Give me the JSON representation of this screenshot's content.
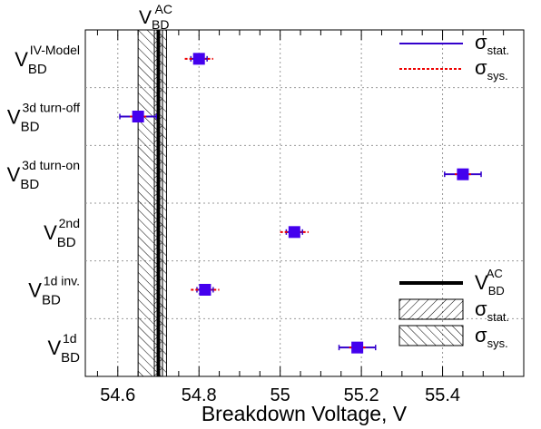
{
  "chart_data": {
    "type": "scatter",
    "xlabel": "Breakdown Voltage, V",
    "xlim": [
      54.52,
      55.6
    ],
    "xticks": [
      {
        "value": 54.6,
        "label": "54.6"
      },
      {
        "value": 54.8,
        "label": "54.8"
      },
      {
        "value": 55.0,
        "label": "55"
      },
      {
        "value": 55.2,
        "label": "55.2"
      },
      {
        "value": 55.4,
        "label": "55.4"
      }
    ],
    "grid": true,
    "reference": {
      "label_main": "V",
      "label_sub": "BD",
      "label_sup": "AC",
      "value": 54.7,
      "stat_band": [
        54.69,
        54.71
      ],
      "sys_band": [
        54.65,
        54.72
      ]
    },
    "points": [
      {
        "label_main": "V",
        "label_sub": "BD",
        "label_sup": "IV-Model",
        "value": 54.8,
        "stat_err": 0.02,
        "sys_err": 0.035
      },
      {
        "label_main": "V",
        "label_sub": "BD",
        "label_sup": "3d turn-off",
        "value": 54.65,
        "stat_err": 0.045,
        "sys_err": 0.02
      },
      {
        "label_main": "V",
        "label_sub": "BD",
        "label_sup": "3d turn-on",
        "value": 55.45,
        "stat_err": 0.045,
        "sys_err": 0.02
      },
      {
        "label_main": "V",
        "label_sub": "BD",
        "label_sup": "2nd",
        "value": 55.035,
        "stat_err": 0.02,
        "sys_err": 0.035
      },
      {
        "label_main": "V",
        "label_sub": "BD",
        "label_sup": "1d inv.",
        "value": 54.815,
        "stat_err": 0.02,
        "sys_err": 0.035
      },
      {
        "label_main": "V",
        "label_sub": "BD",
        "label_sup": "1d",
        "value": 55.19,
        "stat_err": 0.045,
        "sys_err": 0.02
      }
    ],
    "legend_top": [
      {
        "symbol": "stat-line",
        "main": "σ",
        "sub": "stat."
      },
      {
        "symbol": "sys-line",
        "main": "σ",
        "sub": "sys."
      }
    ],
    "legend_bottom": [
      {
        "symbol": "ref-line",
        "main": "V",
        "sub": "BD",
        "sup": "AC"
      },
      {
        "symbol": "stat-hatch",
        "main": "σ",
        "sub": "stat."
      },
      {
        "symbol": "sys-hatch",
        "main": "σ",
        "sub": "sys."
      }
    ],
    "colors": {
      "marker": "#4400ee",
      "stat": "#3300cc",
      "sys": "#ee0000",
      "ref": "#000000",
      "grid": "#999999"
    }
  }
}
